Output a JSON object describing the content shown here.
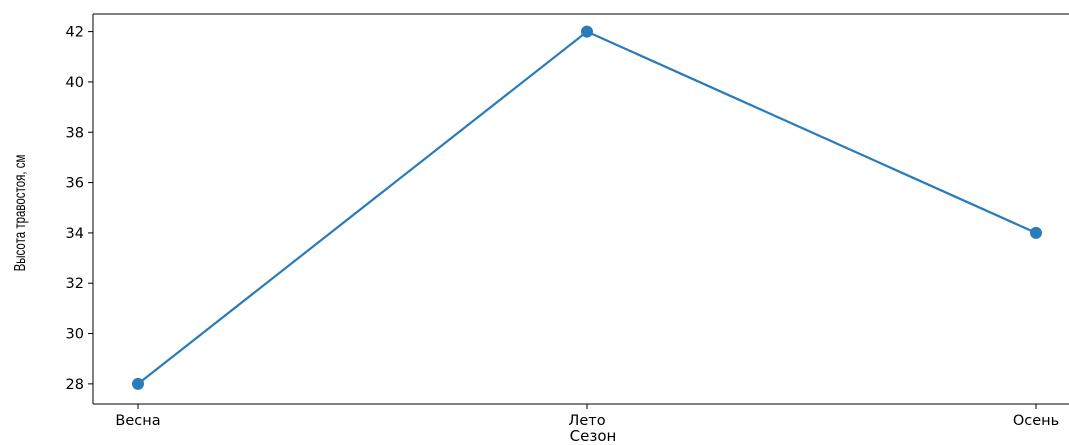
{
  "chart_data": {
    "type": "line",
    "categories": [
      "Весна",
      "Лето",
      "Осень"
    ],
    "series": [
      {
        "values": [
          28,
          42,
          34
        ],
        "color": "#2b7bba",
        "marker": "circle"
      }
    ],
    "xlabel": "Сезон",
    "ylabel": "Высота травостоя, см",
    "ylim": [
      27.2,
      42.7
    ],
    "yticks": [
      "28",
      "30",
      "32",
      "34",
      "36",
      "38",
      "40",
      "42"
    ],
    "grid": false
  }
}
